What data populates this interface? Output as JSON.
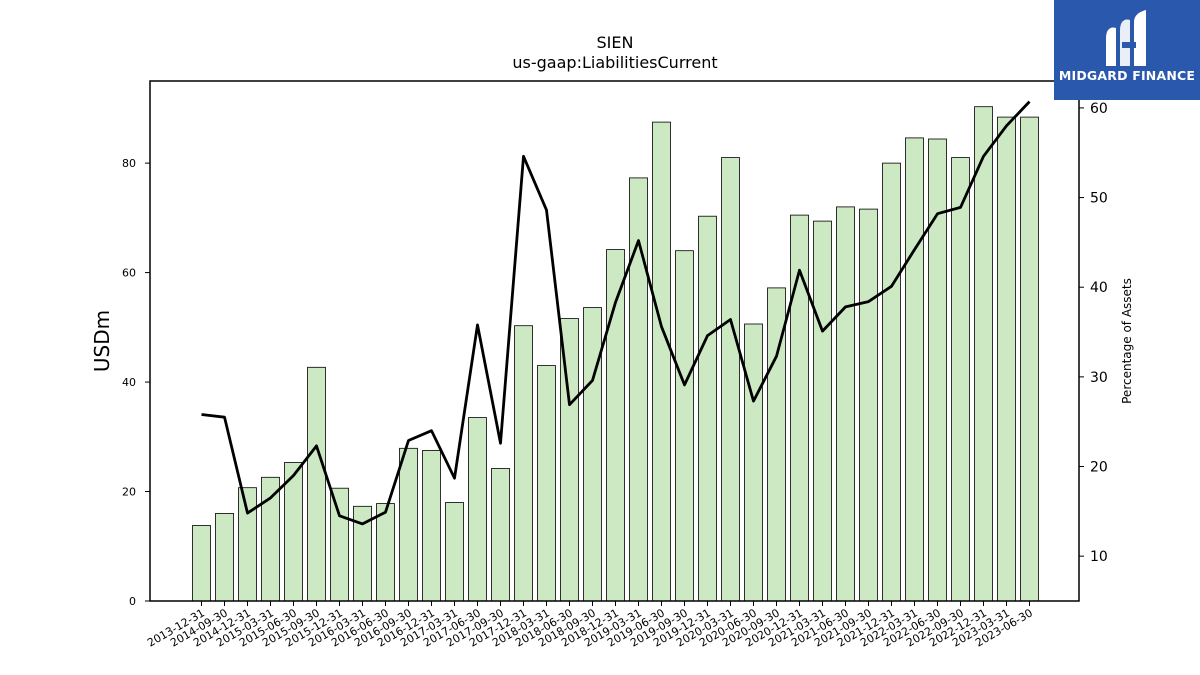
{
  "chart_data": {
    "type": "bar+line",
    "title": "SIEN",
    "subtitle": "us-gaap:LiabilitiesCurrent",
    "ylabel": "USDm",
    "y2label": "Percentage of Assets",
    "ylim": [
      0,
      95
    ],
    "y2lim": [
      5,
      63
    ],
    "yticks": [
      0,
      20,
      40,
      60,
      80
    ],
    "y2ticks": [
      10,
      20,
      30,
      40,
      50,
      60
    ],
    "grid": false,
    "categories": [
      "2013-12-31",
      "2014-09-30",
      "2014-12-31",
      "2015-03-31",
      "2015-06-30",
      "2015-09-30",
      "2015-12-31",
      "2016-03-31",
      "2016-06-30",
      "2016-09-30",
      "2016-12-31",
      "2017-03-31",
      "2017-06-30",
      "2017-09-30",
      "2017-12-31",
      "2018-03-31",
      "2018-06-30",
      "2018-09-30",
      "2018-12-31",
      "2019-03-31",
      "2019-06-30",
      "2019-09-30",
      "2019-12-31",
      "2020-03-31",
      "2020-06-30",
      "2020-09-30",
      "2020-12-31",
      "2021-03-31",
      "2021-06-30",
      "2021-09-30",
      "2021-12-31",
      "2022-03-31",
      "2022-06-30",
      "2022-09-30",
      "2022-12-31",
      "2023-03-31",
      "2023-06-30"
    ],
    "series": [
      {
        "axis": "left",
        "kind": "bar",
        "color": "#cce9c4",
        "values": [
          13.8,
          16.0,
          20.7,
          22.6,
          25.3,
          42.7,
          20.6,
          17.3,
          17.8,
          27.9,
          27.5,
          18.0,
          33.5,
          24.2,
          50.3,
          43.0,
          51.6,
          53.6,
          64.2,
          77.3,
          87.5,
          64.0,
          70.3,
          81.0,
          50.6,
          57.2,
          70.5,
          69.4,
          72.0,
          71.6,
          80.0,
          84.6,
          84.4,
          81.0,
          90.3,
          88.4,
          88.4
        ]
      },
      {
        "axis": "right",
        "kind": "line",
        "color": "#000000",
        "values": [
          25.8,
          25.5,
          14.8,
          16.5,
          19.0,
          22.3,
          14.5,
          13.6,
          14.9,
          22.9,
          24.0,
          18.7,
          35.8,
          22.6,
          54.6,
          48.6,
          26.9,
          29.6,
          38.3,
          45.2,
          35.6,
          29.1,
          34.6,
          36.4,
          27.3,
          32.3,
          41.9,
          35.1,
          37.8,
          38.4,
          40.1,
          44.2,
          48.2,
          48.9,
          54.6,
          58.0,
          60.7
        ]
      }
    ]
  },
  "logo": {
    "text": "MIDGARD FINANCE",
    "mark_icon": "midgard-m-logo-icon",
    "bg_color": "#2a58ad"
  }
}
